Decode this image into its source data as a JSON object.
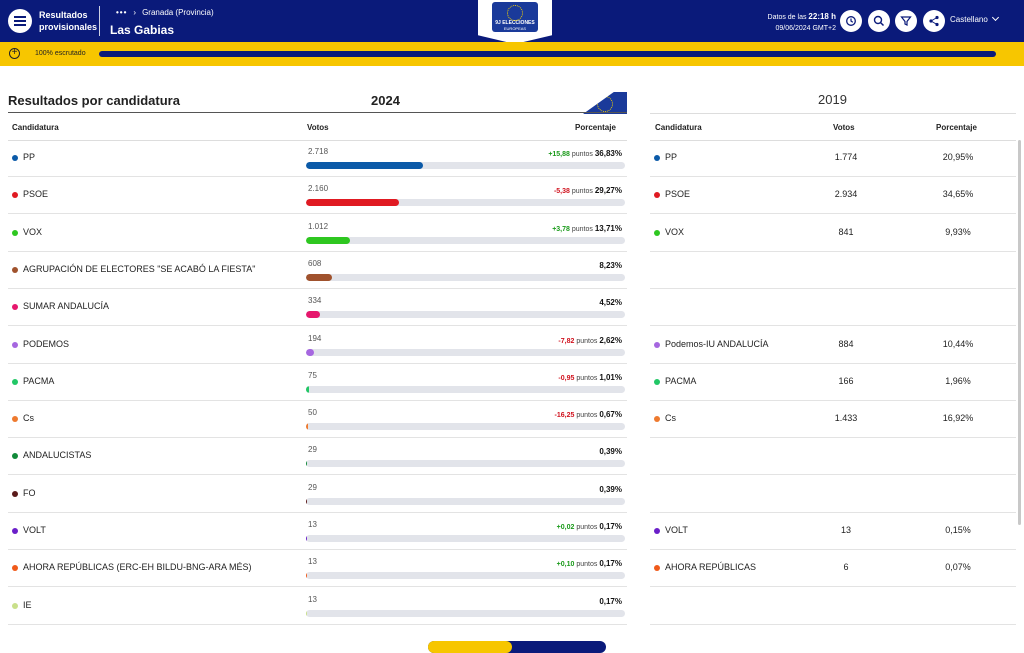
{
  "header": {
    "app_title_1": "Resultados",
    "app_title_2": "provisionales",
    "breadcrumb_dots": "•••",
    "breadcrumb_sep": "›",
    "breadcrumb_parent": "Granada (Provincia)",
    "town": "Las Gabias",
    "logo_line1": "9J ELECCIONES",
    "logo_line2": "EUROPEAS",
    "datos_label": "Datos de las",
    "datos_time": "22:18 h",
    "datos_date": "09/06/2024 GMT+2",
    "language": "Castellano"
  },
  "progress": {
    "label": "100%  escrutado",
    "percent": 100
  },
  "section_title": "Resultados por candidatura",
  "year_current": "2024",
  "year_previous": "2019",
  "columns": {
    "candidatura": "Candidatura",
    "votos": "Votos",
    "porcentaje": "Porcentaje"
  },
  "rows": [
    {
      "name": "PP",
      "color": "#0b5aa8",
      "votes": "2.718",
      "pct_value": 36.83,
      "pct": "36,83%",
      "change": "+15,88",
      "dir": "pos",
      "prev": {
        "name": "PP",
        "votes": "1.774",
        "pct": "20,95%"
      }
    },
    {
      "name": "PSOE",
      "color": "#e01a22",
      "votes": "2.160",
      "pct_value": 29.27,
      "pct": "29,27%",
      "change": "-5,38",
      "dir": "neg",
      "prev": {
        "name": "PSOE",
        "votes": "2.934",
        "pct": "34,65%"
      }
    },
    {
      "name": "VOX",
      "color": "#2ec720",
      "votes": "1.012",
      "pct_value": 13.71,
      "pct": "13,71%",
      "change": "+3,78",
      "dir": "pos",
      "prev": {
        "name": "VOX",
        "votes": "841",
        "pct": "9,93%"
      }
    },
    {
      "name": "AGRUPACIÓN DE ELECTORES \"SE ACABÓ LA FIESTA\"",
      "color": "#a0522d",
      "votes": "608",
      "pct_value": 8.23,
      "pct": "8,23%",
      "change": "",
      "dir": "",
      "prev": null
    },
    {
      "name": "SUMAR ANDALUCÍA",
      "color": "#e6176d",
      "votes": "334",
      "pct_value": 4.52,
      "pct": "4,52%",
      "change": "",
      "dir": "",
      "prev": null
    },
    {
      "name": "PODEMOS",
      "color": "#a667e0",
      "votes": "194",
      "pct_value": 2.62,
      "pct": "2,62%",
      "change": "-7,82",
      "dir": "neg",
      "prev": {
        "name": "Podemos-IU ANDALUCÍA",
        "votes": "884",
        "pct": "10,44%"
      }
    },
    {
      "name": "PACMA",
      "color": "#22c766",
      "votes": "75",
      "pct_value": 1.01,
      "pct": "1,01%",
      "change": "-0,95",
      "dir": "neg",
      "prev": {
        "name": "PACMA",
        "votes": "166",
        "pct": "1,96%"
      }
    },
    {
      "name": "Cs",
      "color": "#ee7a2f",
      "votes": "50",
      "pct_value": 0.67,
      "pct": "0,67%",
      "change": "-16,25",
      "dir": "neg",
      "prev": {
        "name": "Cs",
        "votes": "1.433",
        "pct": "16,92%"
      }
    },
    {
      "name": "ANDALUCISTAS",
      "color": "#118a3a",
      "votes": "29",
      "pct_value": 0.39,
      "pct": "0,39%",
      "change": "",
      "dir": "",
      "prev": null
    },
    {
      "name": "FO",
      "color": "#5a1a1a",
      "votes": "29",
      "pct_value": 0.39,
      "pct": "0,39%",
      "change": "",
      "dir": "",
      "prev": null
    },
    {
      "name": "VOLT",
      "color": "#6a1fc9",
      "votes": "13",
      "pct_value": 0.17,
      "pct": "0,17%",
      "change": "+0,02",
      "dir": "pos",
      "prev": {
        "name": "VOLT",
        "votes": "13",
        "pct": "0,15%"
      }
    },
    {
      "name": "AHORA REPÚBLICAS (ERC-EH BILDU-BNG-ARA MÉS)",
      "color": "#f05a1a",
      "votes": "13",
      "pct_value": 0.17,
      "pct": "0,17%",
      "change": "+0,10",
      "dir": "pos",
      "prev": {
        "name": "AHORA REPÚBLICAS",
        "votes": "6",
        "pct": "0,07%"
      }
    },
    {
      "name": "IE",
      "color": "#c9e08a",
      "votes": "13",
      "pct_value": 0.17,
      "pct": "0,17%",
      "change": "",
      "dir": "",
      "prev": null
    }
  ],
  "points_word": "puntos"
}
